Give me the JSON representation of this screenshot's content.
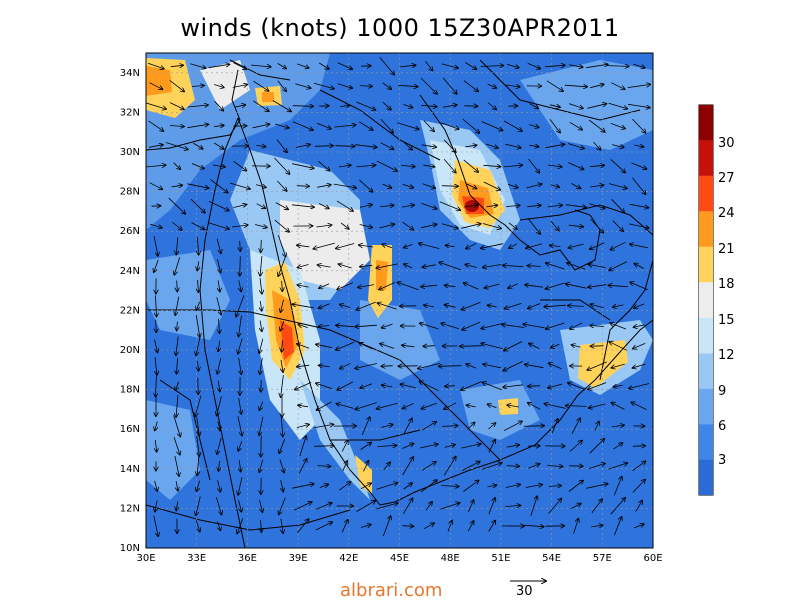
{
  "title": "winds (knots) 1000 15Z30APR2011",
  "map": {
    "lon_labels": [
      "30E",
      "33E",
      "36E",
      "39E",
      "42E",
      "45E",
      "48E",
      "51E",
      "54E",
      "57E",
      "60E"
    ],
    "lat_labels": [
      "10N",
      "12N",
      "14N",
      "16N",
      "18N",
      "20N",
      "22N",
      "24N",
      "26N",
      "28N",
      "30N",
      "32N",
      "34N"
    ],
    "lon_range": [
      30,
      60
    ],
    "lat_range": [
      10,
      35
    ]
  },
  "colorbar": {
    "levels": [
      "3",
      "6",
      "9",
      "12",
      "15",
      "18",
      "21",
      "24",
      "27",
      "30"
    ],
    "colors": [
      "#2a6bd6",
      "#3e86e8",
      "#6aa6ee",
      "#99c8f4",
      "#c9e6f8",
      "#ededed",
      "#ffd35a",
      "#ff9a1c",
      "#ff4b12",
      "#c8100a",
      "#8d0000"
    ]
  },
  "reference_vector": {
    "value": "30"
  },
  "watermark": "albrari.com"
}
